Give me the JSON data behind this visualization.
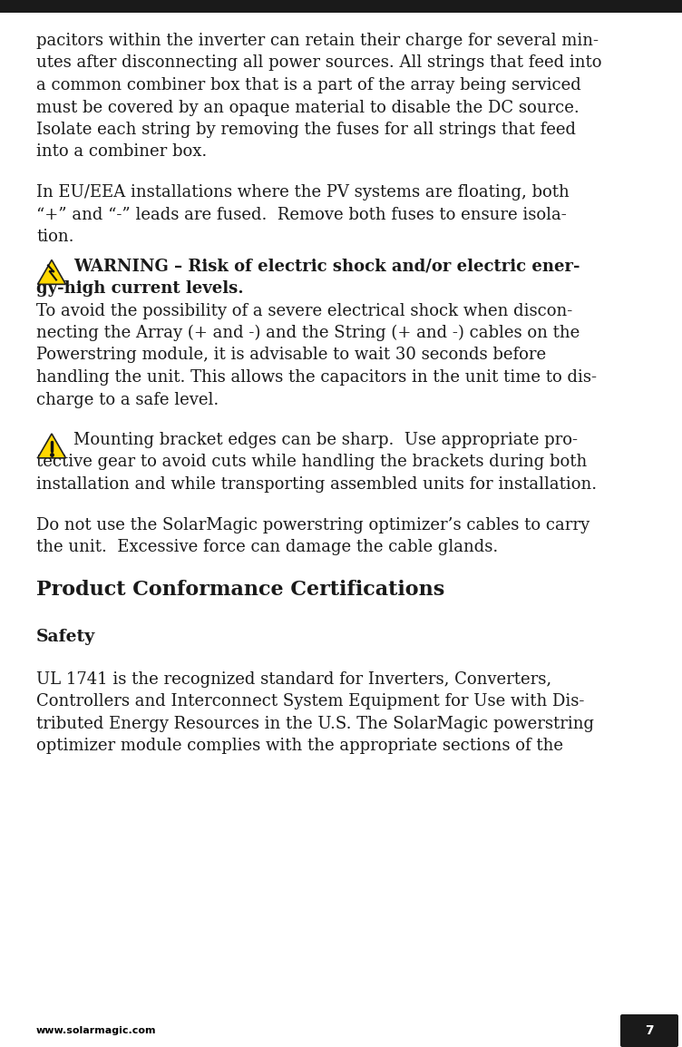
{
  "bg_color": "#ffffff",
  "top_bar_color": "#1a1a1a",
  "footer_bg": "#1a1a1a",
  "footer_text": "www.solarmagic.com",
  "footer_page": "7",
  "footer_text_color": "#ffffff",
  "footer_left_color": "#000000",
  "body_color": "#1a1a1a",
  "lines": [
    {
      "type": "body",
      "text": "pacitors within the inverter can retain their charge for several min-"
    },
    {
      "type": "body",
      "text": "utes after disconnecting all power sources. All strings that feed into"
    },
    {
      "type": "body",
      "text": "a common combiner box that is a part of the array being serviced"
    },
    {
      "type": "body",
      "text": "must be covered by an opaque material to disable the DC source."
    },
    {
      "type": "body",
      "text": "Isolate each string by removing the fuses for all strings that feed"
    },
    {
      "type": "body",
      "text": "into a combiner box."
    },
    {
      "type": "blank"
    },
    {
      "type": "body",
      "text": "In EU/EEA installations where the PV systems are floating, both"
    },
    {
      "type": "body",
      "text": "“+” and “-” leads are fused.  Remove both fuses to ensure isola-"
    },
    {
      "type": "body",
      "text": "tion."
    },
    {
      "type": "blank_small"
    },
    {
      "type": "warning_electric_line1",
      "text": "   WARNING – Risk of electric shock and/or electric ener-"
    },
    {
      "type": "bold_body",
      "text": "gy-high current levels."
    },
    {
      "type": "body",
      "text": "To avoid the possibility of a severe electrical shock when discon-"
    },
    {
      "type": "body",
      "text": "necting the Array (+ and -) and the String (+ and -) cables on the"
    },
    {
      "type": "body",
      "text": "Powerstring module, it is advisable to wait 30 seconds before"
    },
    {
      "type": "body",
      "text": "handling the unit. This allows the capacitors in the unit time to dis-"
    },
    {
      "type": "body",
      "text": "charge to a safe level."
    },
    {
      "type": "blank"
    },
    {
      "type": "caution_line1",
      "text": "   Mounting bracket edges can be sharp.  Use appropriate pro-"
    },
    {
      "type": "body",
      "text": "tective gear to avoid cuts while handling the brackets during both"
    },
    {
      "type": "body",
      "text": "installation and while transporting assembled units for installation."
    },
    {
      "type": "blank"
    },
    {
      "type": "body",
      "text": "Do not use the SolarMagic powerstring optimizer’s cables to carry"
    },
    {
      "type": "body",
      "text": "the unit.  Excessive force can damage the cable glands."
    },
    {
      "type": "blank"
    },
    {
      "type": "section_header",
      "text": "Product Conformance Certifications"
    },
    {
      "type": "blank"
    },
    {
      "type": "sub_header",
      "text": "Safety"
    },
    {
      "type": "blank"
    },
    {
      "type": "body",
      "text": "UL 1741 is the recognized standard for Inverters, Converters,"
    },
    {
      "type": "body",
      "text": "Controllers and Interconnect System Equipment for Use with Dis-"
    },
    {
      "type": "body",
      "text": "tributed Energy Resources in the U.S. The SolarMagic powerstring"
    },
    {
      "type": "body",
      "text": "optimizer module complies with the appropriate sections of the"
    }
  ]
}
